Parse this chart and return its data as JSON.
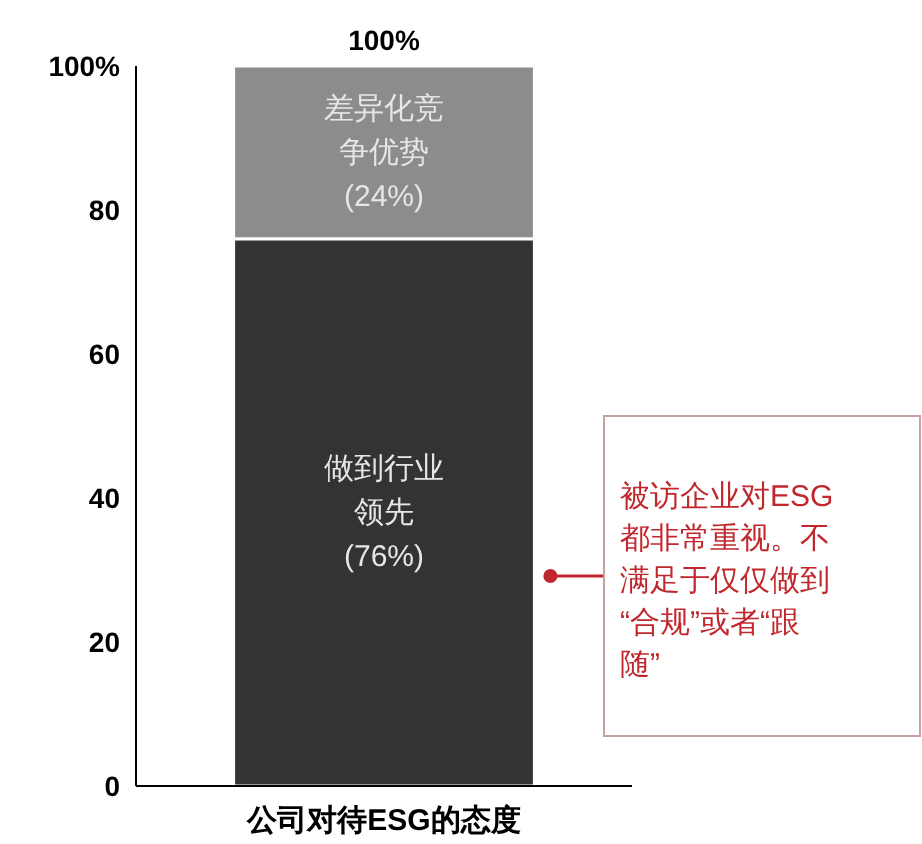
{
  "chart_data": {
    "type": "bar",
    "stacked": true,
    "categories": [
      "公司对待ESG的态度"
    ],
    "series": [
      {
        "name": "做到行业领先",
        "color": "#333333",
        "values": [
          76
        ],
        "value_labels": [
          "(76%)"
        ]
      },
      {
        "name": "差异化竞争优势",
        "color": "#8c8c8c",
        "values": [
          24
        ],
        "value_labels": [
          "(24%)"
        ]
      }
    ],
    "totals": [
      "100%"
    ],
    "ylim": [
      0,
      100
    ],
    "yticks": [
      0,
      20,
      40,
      60,
      80,
      {
        "value": 100,
        "label": "100%"
      }
    ],
    "grid": false,
    "annotations": [
      "被访企业对ESG都非常重视。不满足于仅仅做到“合规”或者“跟随”"
    ]
  }
}
